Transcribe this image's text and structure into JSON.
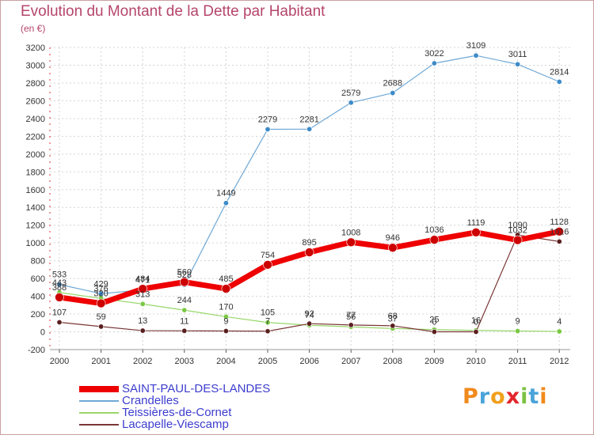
{
  "title": "Evolution du Montant de la Dette par Habitant",
  "subtitle": "(en €)",
  "logo": {
    "letters": [
      "P",
      "r",
      "o",
      "x",
      "i",
      "t",
      "i"
    ],
    "colors": [
      "#f08a1c",
      "#4aa3d8",
      "#f0a01c",
      "#e3262c",
      "#7cc242",
      "#4aa3d8",
      "#f08a1c"
    ]
  },
  "chart_data": {
    "type": "line",
    "x": [
      2000,
      2001,
      2002,
      2003,
      2004,
      2005,
      2006,
      2007,
      2008,
      2009,
      2010,
      2011,
      2012
    ],
    "ylim": [
      -200,
      3200
    ],
    "yticks": [
      -200,
      0,
      200,
      400,
      600,
      800,
      1000,
      1200,
      1400,
      1600,
      1800,
      2000,
      2200,
      2400,
      2600,
      2800,
      3000,
      3200
    ],
    "grid": true,
    "legend_position": "bottom-left",
    "series": [
      {
        "name": "SAINT-PAUL-DES-LANDES",
        "color": "#ee0000",
        "marker": "#cc0000",
        "width": 7,
        "values": [
          388,
          320,
          484,
          560,
          485,
          754,
          895,
          1008,
          946,
          1036,
          1119,
          1032,
          1128
        ]
      },
      {
        "name": "Crandelles",
        "color": "#6fa8d6",
        "marker": "#3d8bc9",
        "width": 1.2,
        "values": [
          533,
          429,
          471,
          528,
          1449,
          2279,
          2281,
          2579,
          2688,
          3022,
          3109,
          3011,
          2814
        ]
      },
      {
        "name": "Teissières-de-Cornet",
        "color": "#98d66a",
        "marker": "#7ac943",
        "width": 1.2,
        "values": [
          443,
          376,
          313,
          244,
          170,
          105,
          74,
          56,
          37,
          25,
          16,
          9,
          4
        ]
      },
      {
        "name": "Lacapelle-Viescamp",
        "color": "#7a3636",
        "marker": "#5a1f1f",
        "width": 1.2,
        "values": [
          107,
          59,
          13,
          11,
          9,
          7,
          92,
          77,
          68,
          0,
          0,
          1090,
          1016
        ]
      }
    ]
  }
}
